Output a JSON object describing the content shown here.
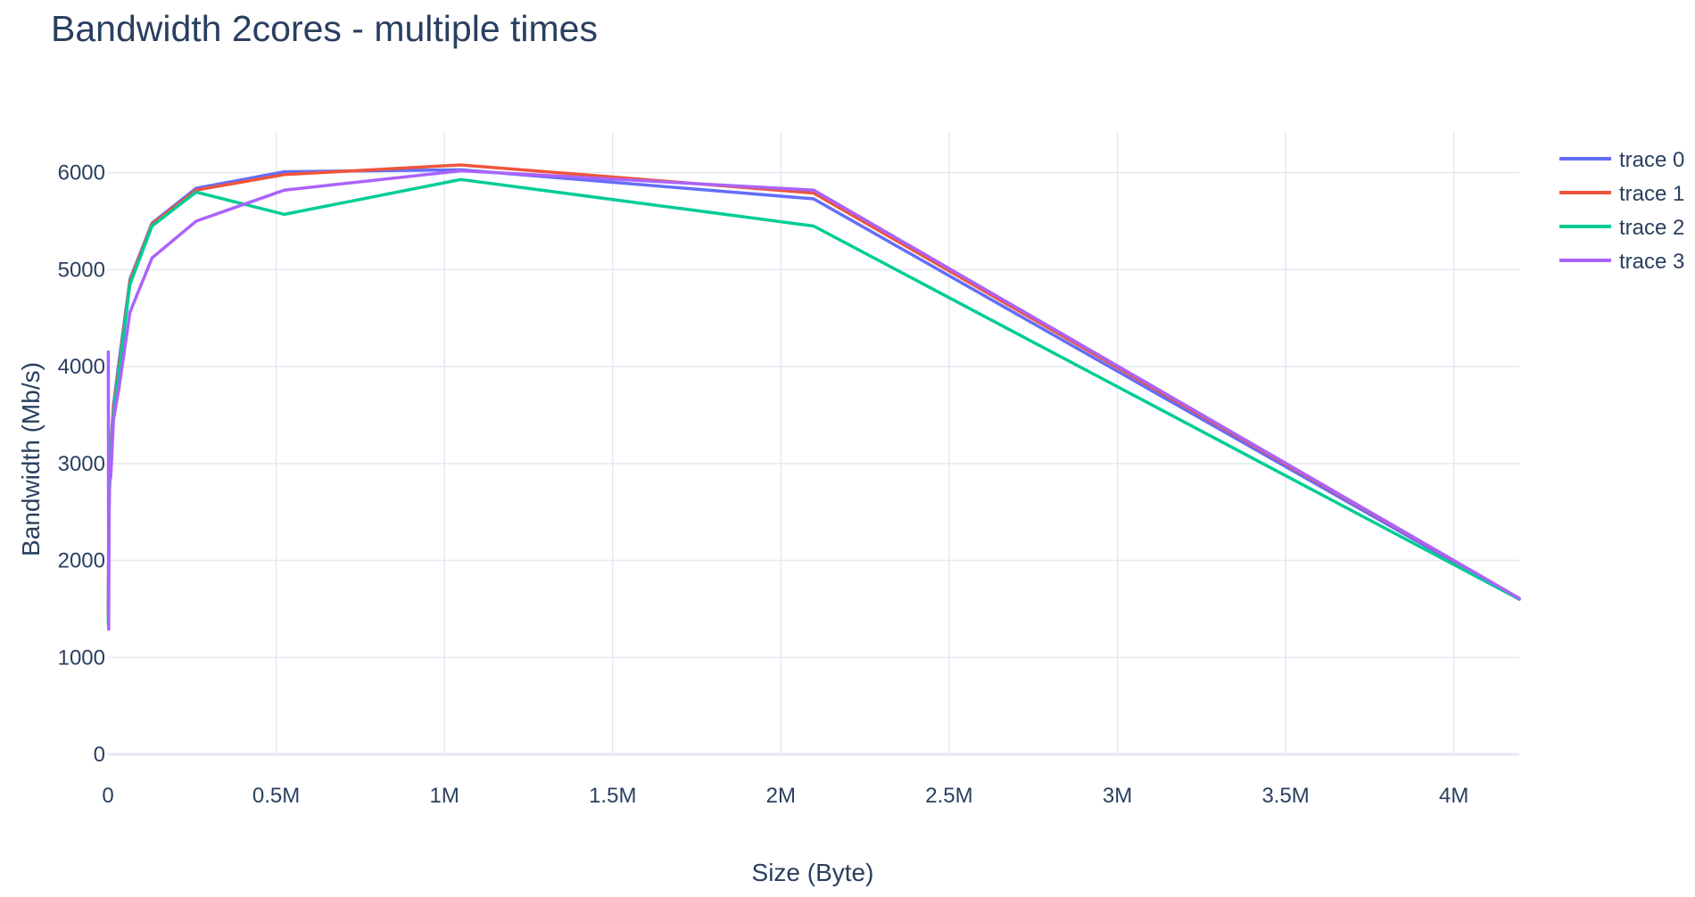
{
  "chart_data": {
    "type": "line",
    "title": "Bandwidth 2cores - multiple times",
    "xlabel": "Size (Byte)",
    "ylabel": "Bandwidth (Mb/s)",
    "xlim": [
      0,
      4194304
    ],
    "ylim": [
      0,
      6420
    ],
    "x_ticks": [
      {
        "value": 0,
        "label": "0"
      },
      {
        "value": 500000,
        "label": "0.5M"
      },
      {
        "value": 1000000,
        "label": "1M"
      },
      {
        "value": 1500000,
        "label": "1.5M"
      },
      {
        "value": 2000000,
        "label": "2M"
      },
      {
        "value": 2500000,
        "label": "2.5M"
      },
      {
        "value": 3000000,
        "label": "3M"
      },
      {
        "value": 3500000,
        "label": "3.5M"
      },
      {
        "value": 4000000,
        "label": "4M"
      }
    ],
    "y_ticks": [
      {
        "value": 0,
        "label": "0"
      },
      {
        "value": 1000,
        "label": "1000"
      },
      {
        "value": 2000,
        "label": "2000"
      },
      {
        "value": 3000,
        "label": "3000"
      },
      {
        "value": 4000,
        "label": "4000"
      },
      {
        "value": 5000,
        "label": "5000"
      },
      {
        "value": 6000,
        "label": "6000"
      }
    ],
    "grid": true,
    "legend_position": "top-right",
    "x": [
      1024,
      2048,
      4096,
      8192,
      16384,
      32768,
      65536,
      131072,
      262144,
      524288,
      1048576,
      2097152,
      4194304
    ],
    "series": [
      {
        "name": "trace 0",
        "color": "#636efa",
        "values": [
          1450,
          2200,
          2750,
          3150,
          3600,
          4050,
          4900,
          5480,
          5840,
          6010,
          6030,
          5730,
          1600
        ]
      },
      {
        "name": "trace 1",
        "color": "#ef553b",
        "values": [
          1400,
          2150,
          2700,
          3100,
          3550,
          4000,
          4880,
          5470,
          5820,
          5980,
          6080,
          5790,
          1610
        ]
      },
      {
        "name": "trace 2",
        "color": "#00cc96",
        "values": [
          1350,
          2100,
          2650,
          3050,
          3500,
          3950,
          4850,
          5450,
          5800,
          5570,
          5930,
          5450,
          1600
        ]
      },
      {
        "name": "trace 3",
        "color": "#ab63fa",
        "values": [
          4150,
          1290,
          2950,
          2850,
          3450,
          3780,
          4560,
          5120,
          5500,
          5820,
          6020,
          5820,
          1610
        ]
      }
    ]
  }
}
